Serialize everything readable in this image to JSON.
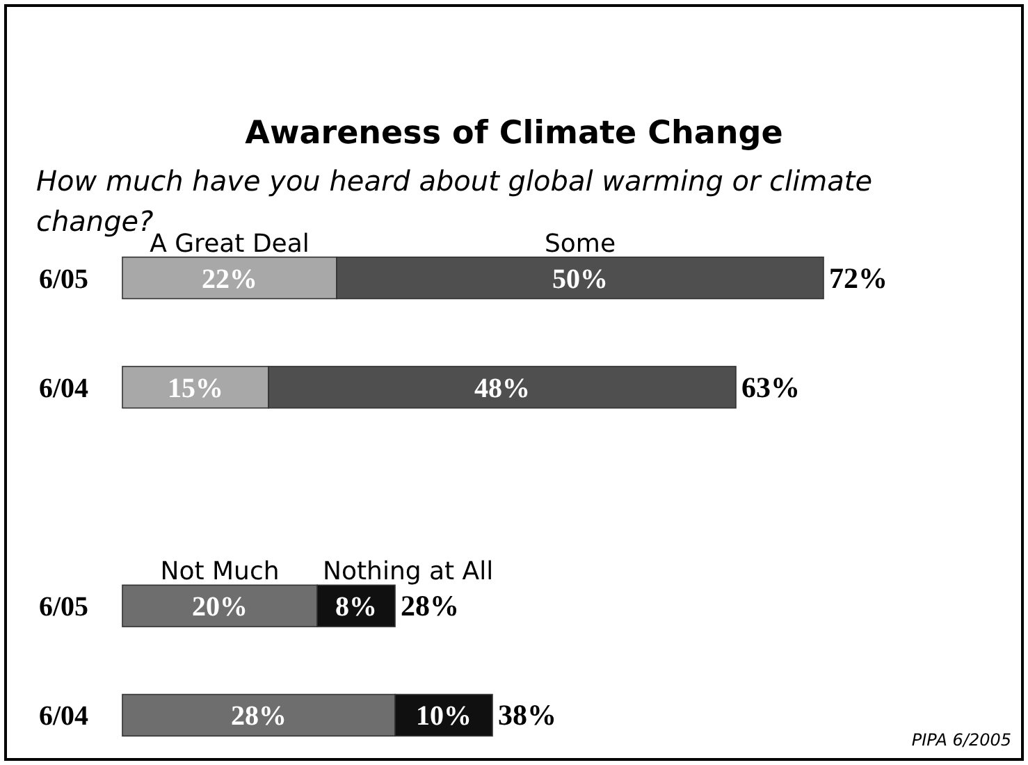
{
  "chart_data": {
    "type": "bar",
    "orientation": "horizontal",
    "stacked": true,
    "title": "Awareness of Climate Change",
    "subtitle": "How much have you heard about global warming or climate change?",
    "categories": [
      "6/05",
      "6/04",
      null,
      "6/05",
      "6/04"
    ],
    "series": [
      {
        "name": "A Great Deal",
        "color": "#a8a8a8",
        "values": [
          22,
          15,
          null,
          null,
          null
        ],
        "value_labels": [
          "22%",
          "15%",
          null,
          null,
          null
        ]
      },
      {
        "name": "Some",
        "color": "#4f4f4f",
        "values": [
          50,
          48,
          null,
          null,
          null
        ],
        "value_labels": [
          "50%",
          "48%",
          null,
          null,
          null
        ]
      },
      {
        "name": "Not Much",
        "color": "#6e6e6e",
        "values": [
          null,
          null,
          null,
          20,
          28
        ],
        "value_labels": [
          null,
          null,
          null,
          "20%",
          "28%"
        ]
      },
      {
        "name": "Nothing at All",
        "color": "#101010",
        "values": [
          null,
          null,
          null,
          8,
          10
        ],
        "value_labels": [
          null,
          null,
          null,
          "8%",
          "10%"
        ]
      }
    ],
    "totals": [
      "72%",
      "63%",
      null,
      "28%",
      "38%"
    ],
    "annotations": [
      "PIPA 6/2005"
    ]
  }
}
